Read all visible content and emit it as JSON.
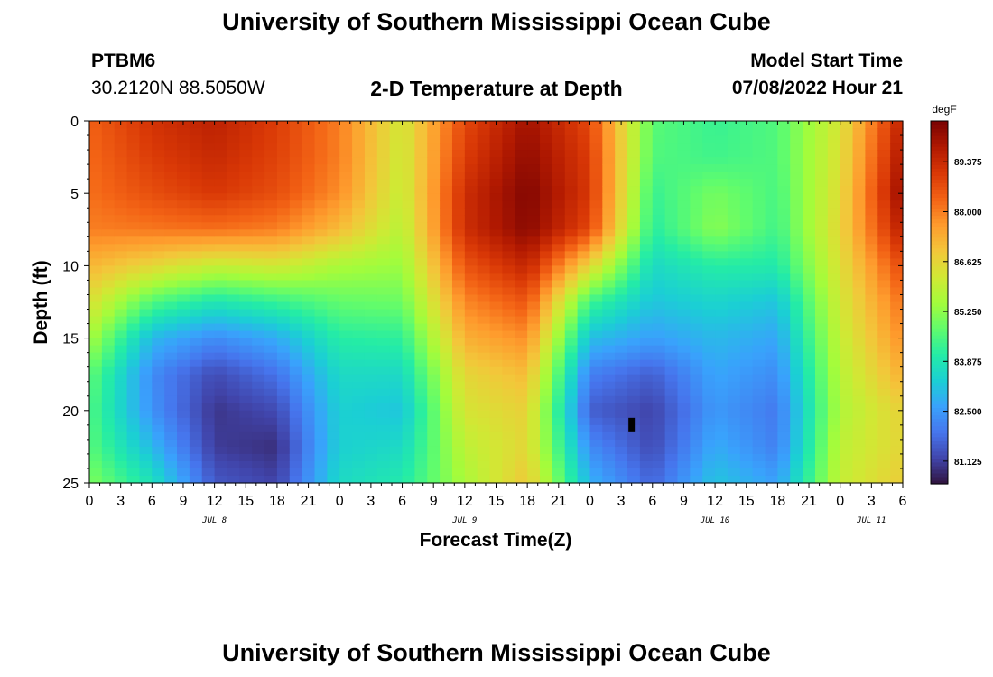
{
  "header": {
    "title": "University of Southern Mississippi Ocean Cube",
    "station_id": "PTBM6",
    "station_coords": "30.2120N  88.5050W",
    "subtitle": "2-D Temperature at Depth",
    "model_start_label": "Model Start Time",
    "model_start_value": "07/08/2022 Hour 21"
  },
  "footer": {
    "title": "University of Southern Mississippi Ocean Cube"
  },
  "chart_data": {
    "type": "heatmap",
    "title": "2-D Temperature at Depth",
    "xlabel": "Forecast Time(Z)",
    "ylabel": "Depth (ft)",
    "x_unit": "forecast hour (0 = Jul 8 00Z)",
    "xlim": [
      0,
      78
    ],
    "ylim": [
      0,
      25
    ],
    "y_reversed": true,
    "x_tick_labels": [
      "0",
      "3",
      "6",
      "9",
      "12",
      "15",
      "18",
      "21",
      "0",
      "3",
      "6",
      "9",
      "12",
      "15",
      "18",
      "21",
      "0",
      "3",
      "6",
      "9",
      "12",
      "15",
      "18",
      "21",
      "0",
      "3",
      "6"
    ],
    "y_tick_labels": [
      "0",
      "5",
      "10",
      "15",
      "20",
      "25"
    ],
    "y_ticks": [
      0,
      5,
      10,
      15,
      20,
      25
    ],
    "date_labels": [
      {
        "text": "JUL 8",
        "hour": 12
      },
      {
        "text": "JUL 9",
        "hour": 36
      },
      {
        "text": "JUL 10",
        "hour": 60
      },
      {
        "text": "JUL 11",
        "hour": 75
      }
    ],
    "colorbar": {
      "unit": "degF",
      "min": 80.5,
      "max": 90.5,
      "tick_labels": [
        "89.375",
        "88.000",
        "86.625",
        "85.250",
        "83.875",
        "82.500",
        "81.125"
      ],
      "tick_values": [
        89.375,
        88.0,
        86.625,
        85.25,
        83.875,
        82.5,
        81.125
      ],
      "colormap": [
        "#30123b",
        "#4145ab",
        "#4675ed",
        "#39a2fc",
        "#1bcfd4",
        "#24eca6",
        "#61fc6c",
        "#a4fc3b",
        "#d1e834",
        "#f3c63a",
        "#fe9b2d",
        "#f36315",
        "#d93806",
        "#b11901",
        "#7a0403"
      ]
    },
    "depths_ft": [
      0,
      2.5,
      5,
      7.5,
      10,
      12.5,
      15,
      17.5,
      20,
      22.5,
      25
    ],
    "hours": [
      0,
      6,
      12,
      18,
      24,
      30,
      36,
      42,
      48,
      54,
      60,
      66,
      72,
      78
    ],
    "temperature_degF": [
      [
        88.4,
        89.2,
        89.6,
        89.0,
        88.0,
        86.2,
        88.8,
        90.0,
        88.8,
        84.7,
        84.3,
        84.6,
        86.3,
        89.6
      ],
      [
        88.3,
        89.0,
        89.4,
        88.9,
        88.0,
        86.1,
        89.0,
        90.2,
        89.0,
        84.6,
        84.4,
        84.6,
        86.4,
        89.9
      ],
      [
        88.2,
        88.7,
        89.1,
        88.7,
        87.8,
        86.0,
        89.3,
        90.4,
        89.1,
        84.3,
        85.0,
        84.5,
        86.5,
        90.2
      ],
      [
        88.0,
        88.1,
        88.2,
        88.0,
        87.1,
        85.8,
        89.3,
        90.3,
        88.8,
        84.1,
        85.2,
        84.4,
        86.6,
        89.7
      ],
      [
        87.2,
        86.6,
        86.0,
        86.2,
        85.6,
        85.4,
        88.6,
        89.5,
        86.6,
        83.6,
        84.1,
        84.0,
        86.4,
        88.8
      ],
      [
        86.4,
        84.6,
        83.9,
        84.3,
        84.8,
        84.9,
        87.9,
        88.6,
        84.4,
        83.2,
        83.5,
        83.2,
        86.2,
        88.2
      ],
      [
        85.6,
        83.0,
        82.3,
        82.8,
        84.1,
        84.2,
        87.3,
        87.8,
        83.1,
        82.6,
        83.0,
        82.7,
        86.0,
        87.8
      ],
      [
        84.8,
        82.3,
        81.3,
        81.9,
        83.6,
        83.6,
        86.6,
        87.1,
        82.1,
        81.6,
        82.7,
        82.3,
        85.8,
        87.3
      ],
      [
        84.6,
        82.4,
        81.0,
        81.3,
        83.4,
        83.2,
        86.3,
        86.7,
        81.6,
        81.2,
        82.5,
        82.0,
        85.7,
        86.7
      ],
      [
        84.7,
        83.0,
        81.1,
        80.9,
        83.4,
        83.6,
        85.9,
        86.6,
        82.3,
        81.3,
        82.8,
        82.1,
        85.9,
        86.6
      ],
      [
        85.1,
        83.8,
        81.5,
        81.2,
        83.6,
        84.0,
        85.6,
        86.9,
        82.9,
        81.7,
        83.2,
        82.6,
        86.0,
        86.8
      ]
    ],
    "missing_cell": {
      "hour": 52,
      "depth_ft": 21
    }
  }
}
